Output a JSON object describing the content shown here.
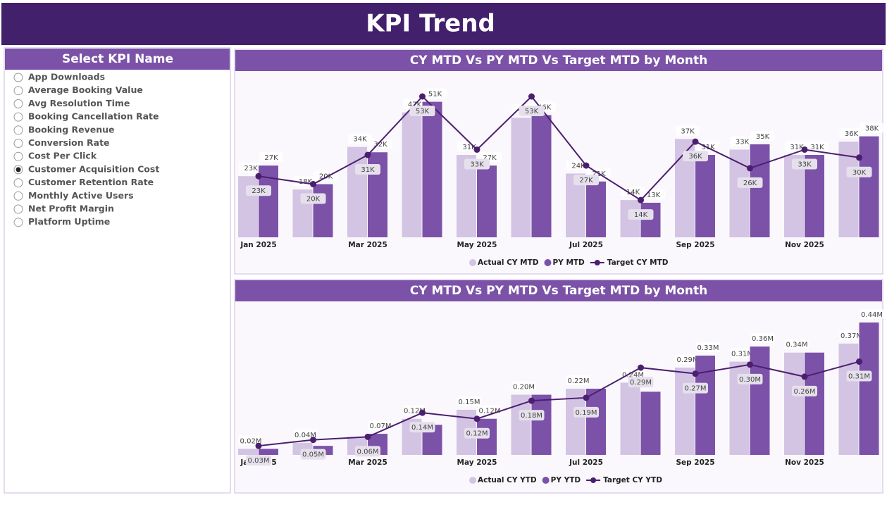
{
  "header": {
    "title": "KPI Trend"
  },
  "slicer": {
    "title": "Select KPI Name",
    "selected": 7,
    "items": [
      "App Downloads",
      "Average Booking Value",
      "Avg Resolution Time",
      "Booking Cancellation Rate",
      "Booking Revenue",
      "Conversion Rate",
      "Cost Per Click",
      "Customer Acquisition Cost",
      "Customer Retention Rate",
      "Monthly Active Users",
      "Net Profit Margin",
      "Platform Uptime"
    ]
  },
  "chart_data": [
    {
      "type": "bar",
      "title": "CY MTD Vs PY MTD Vs Target MTD by Month",
      "categories": [
        "Jan 2025",
        null,
        "Mar 2025",
        null,
        "May 2025",
        null,
        "Jul 2025",
        null,
        "Sep 2025",
        null,
        "Nov 2025",
        null
      ],
      "series": [
        {
          "name": "Actual CY MTD",
          "color": "#d3c4e3",
          "values": [
            23000,
            18000,
            34000,
            47000,
            31000,
            45000,
            24000,
            14000,
            37000,
            33000,
            31000,
            36000
          ],
          "value_labels": [
            "23K",
            "18K",
            "34K",
            "47K",
            "31K",
            "45K",
            "24K",
            "14K",
            "37K",
            "33K",
            "31K",
            "36K"
          ]
        },
        {
          "name": "PY MTD",
          "color": "#7b52a8",
          "values": [
            27000,
            20000,
            32000,
            51000,
            27000,
            46000,
            21000,
            13000,
            31000,
            35000,
            31000,
            38000
          ],
          "value_labels": [
            "27K",
            "20K",
            "32K",
            "51K",
            "27K",
            "46K",
            "21K",
            "13K",
            "31K",
            "35K",
            "31K",
            "38K"
          ]
        },
        {
          "name": "Target CY MTD",
          "color": "#4b1f6f",
          "kind": "line",
          "values": [
            23000,
            20000,
            31000,
            53000,
            33000,
            53000,
            27000,
            14000,
            36000,
            26000,
            33000,
            30000
          ],
          "value_labels": [
            "23K",
            "20K",
            "31K",
            "53K",
            "33K",
            "53K",
            "27K",
            "14K",
            "36K",
            "26K",
            "33K",
            "30K"
          ]
        }
      ]
    },
    {
      "type": "bar",
      "title": "CY MTD Vs PY MTD Vs Target MTD by Month",
      "categories": [
        "Jan 2025",
        null,
        "Mar 2025",
        null,
        "May 2025",
        null,
        "Jul 2025",
        null,
        "Sep 2025",
        null,
        "Nov 2025",
        null
      ],
      "series": [
        {
          "name": "Actual CY YTD",
          "color": "#d3c4e3",
          "values": [
            20000,
            40000,
            60000,
            120000,
            150000,
            200000,
            220000,
            240000,
            290000,
            310000,
            340000,
            370000
          ],
          "value_labels": [
            "0.02M",
            "0.04M",
            null,
            "0.12M",
            "0.15M",
            "0.20M",
            "0.22M",
            "0.24M",
            "0.29M",
            "0.31M",
            "0.34M",
            "0.37M"
          ]
        },
        {
          "name": "PY YTD",
          "color": "#7b52a8",
          "values": [
            20000,
            30000,
            70000,
            100000,
            120000,
            200000,
            220000,
            210000,
            330000,
            360000,
            340000,
            440000
          ],
          "value_labels": [
            null,
            null,
            "0.07M",
            null,
            "0.12M",
            null,
            null,
            null,
            "0.33M",
            "0.36M",
            null,
            "0.44M"
          ]
        },
        {
          "name": "Target CY YTD",
          "color": "#4b1f6f",
          "kind": "line",
          "values": [
            30000,
            50000,
            60000,
            140000,
            120000,
            180000,
            190000,
            290000,
            270000,
            300000,
            260000,
            310000
          ],
          "value_labels": [
            "0.03M",
            "0.05M",
            "0.06M",
            "0.14M",
            "0.12M",
            "0.18M",
            "0.19M",
            "0.29M",
            "0.27M",
            "0.30M",
            "0.26M",
            "0.31M"
          ]
        }
      ]
    }
  ]
}
